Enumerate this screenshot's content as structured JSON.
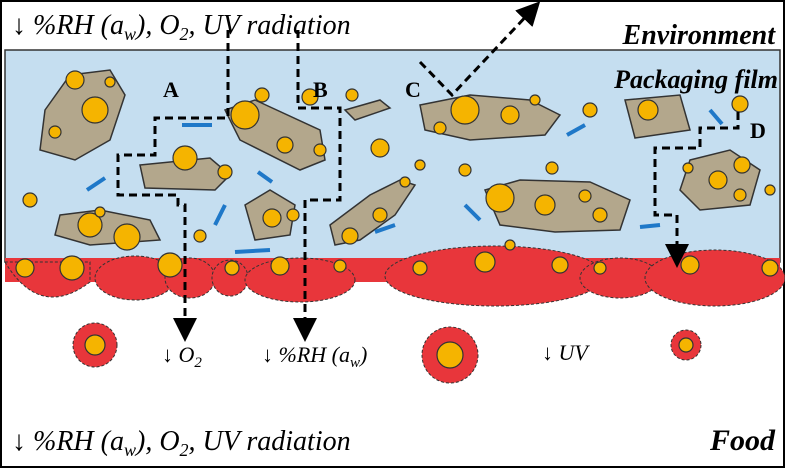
{
  "top_caption": [
    "↓ %RH (a",
    "w",
    "), O",
    "2",
    ", UV radiation"
  ],
  "environment_label": "Environment",
  "film_label": "Packaging film",
  "food_label": "Food",
  "path_labels": [
    "A",
    "B",
    "C",
    "D"
  ],
  "o2_label": [
    "↓ O",
    "2"
  ],
  "rh_label": [
    "↓ %RH (a",
    "w",
    ")"
  ],
  "uv_label": "↓ UV",
  "bottom_caption": [
    "↓ %RH (a",
    "w",
    "), O",
    "2",
    ", UV radiation"
  ]
}
